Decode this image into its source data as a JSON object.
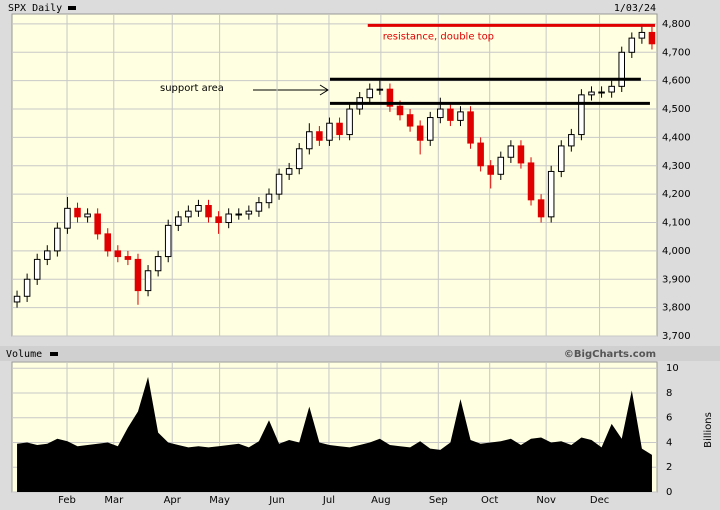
{
  "chart_data": [
    {
      "type": "candlestick",
      "title": "SPX Daily",
      "date": "1/03/24",
      "open": [
        3820,
        3840,
        3900,
        3970,
        4000,
        4080,
        4150,
        4120,
        4130,
        4060,
        4000,
        3980,
        3970,
        3860,
        3930,
        3980,
        4090,
        4120,
        4140,
        4160,
        4120,
        4100,
        4130,
        4130,
        4140,
        4170,
        4200,
        4270,
        4290,
        4360,
        4420,
        4390,
        4450,
        4410,
        4500,
        4540,
        4570,
        4570,
        4510,
        4480,
        4440,
        4390,
        4470,
        4500,
        4460,
        4490,
        4380,
        4300,
        4270,
        4330,
        4370,
        4310,
        4180,
        4120,
        4280,
        4370,
        4410,
        4550,
        4560,
        4560,
        4580,
        4700,
        4750,
        4770
      ],
      "high": [
        3860,
        3920,
        3990,
        4020,
        4100,
        4190,
        4170,
        4150,
        4150,
        4080,
        4020,
        4000,
        3990,
        3950,
        4000,
        4110,
        4140,
        4160,
        4180,
        4180,
        4140,
        4150,
        4150,
        4160,
        4190,
        4220,
        4290,
        4310,
        4380,
        4450,
        4440,
        4470,
        4470,
        4520,
        4560,
        4590,
        4600,
        4590,
        4530,
        4500,
        4460,
        4490,
        4540,
        4520,
        4510,
        4510,
        4400,
        4320,
        4350,
        4390,
        4390,
        4330,
        4200,
        4300,
        4390,
        4430,
        4570,
        4580,
        4580,
        4600,
        4720,
        4770,
        4800,
        4790
      ],
      "low": [
        3800,
        3820,
        3880,
        3950,
        3980,
        4060,
        4100,
        4100,
        4040,
        3980,
        3960,
        3950,
        3810,
        3840,
        3910,
        3960,
        4070,
        4100,
        4120,
        4100,
        4060,
        4080,
        4110,
        4110,
        4120,
        4150,
        4180,
        4250,
        4270,
        4340,
        4370,
        4370,
        4390,
        4390,
        4480,
        4520,
        4550,
        4490,
        4460,
        4420,
        4340,
        4370,
        4450,
        4440,
        4440,
        4360,
        4280,
        4220,
        4250,
        4310,
        4290,
        4160,
        4100,
        4100,
        4260,
        4350,
        4390,
        4530,
        4540,
        4540,
        4560,
        4680,
        4730,
        4710
      ],
      "close": [
        3840,
        3900,
        3970,
        4000,
        4080,
        4150,
        4120,
        4130,
        4060,
        4000,
        3980,
        3970,
        3860,
        3930,
        3980,
        4090,
        4120,
        4140,
        4160,
        4120,
        4100,
        4130,
        4130,
        4140,
        4170,
        4200,
        4270,
        4290,
        4360,
        4420,
        4390,
        4450,
        4410,
        4500,
        4540,
        4570,
        4570,
        4510,
        4480,
        4440,
        4390,
        4470,
        4500,
        4460,
        4490,
        4380,
        4300,
        4270,
        4330,
        4370,
        4310,
        4180,
        4120,
        4280,
        4370,
        4410,
        4550,
        4560,
        4560,
        4580,
        4700,
        4750,
        4770,
        4730
      ],
      "up_color": "#000000",
      "down_color": "#e00000",
      "xlim": [
        -0.5,
        63.5
      ],
      "xticks": [
        {
          "value": 4.96,
          "label": "Feb"
        },
        {
          "value": 9.6,
          "label": "Mar"
        },
        {
          "value": 15.4,
          "label": "Apr"
        },
        {
          "value": 20.1,
          "label": "May"
        },
        {
          "value": 25.8,
          "label": "Jun"
        },
        {
          "value": 30.95,
          "label": "Jul"
        },
        {
          "value": 36.1,
          "label": "Aug"
        },
        {
          "value": 41.8,
          "label": "Sep"
        },
        {
          "value": 46.9,
          "label": "Oct"
        },
        {
          "value": 52.5,
          "label": "Nov"
        },
        {
          "value": 57.8,
          "label": "Dec"
        }
      ],
      "ylim": [
        3700,
        4835
      ],
      "yticks": [
        {
          "value": 3700,
          "label": "3,700"
        },
        {
          "value": 3800,
          "label": "3,800"
        },
        {
          "value": 3900,
          "label": "3,900"
        },
        {
          "value": 4000,
          "label": "4,000"
        },
        {
          "value": 4100,
          "label": "4,100"
        },
        {
          "value": 4200,
          "label": "4,200"
        },
        {
          "value": 4300,
          "label": "4,300"
        },
        {
          "value": 4400,
          "label": "4,400"
        },
        {
          "value": 4500,
          "label": "4,500"
        },
        {
          "value": 4600,
          "label": "4,600"
        },
        {
          "value": 4700,
          "label": "4,700"
        },
        {
          "value": 4800,
          "label": "4,800"
        }
      ],
      "grid": true,
      "levels": [
        {
          "value": 4795,
          "from": 34.8,
          "to": 63.3,
          "color": "#e00000",
          "label": "resistance, double top"
        },
        {
          "value": 4605,
          "from": 31.05,
          "to": 61.9,
          "color": "#000000",
          "label": "support area"
        },
        {
          "value": 4520,
          "from": 31.05,
          "to": 62.8,
          "color": "#000000"
        }
      ]
    },
    {
      "type": "area",
      "title": "Volume",
      "credit": "©BigCharts.com",
      "ylabel": "Billions",
      "color": "#000000",
      "values": [
        3.9,
        4.0,
        3.8,
        3.9,
        4.3,
        4.1,
        3.7,
        3.8,
        3.9,
        4.0,
        3.7,
        5.2,
        6.5,
        9.3,
        4.8,
        4.0,
        3.8,
        3.6,
        3.7,
        3.6,
        3.7,
        3.8,
        3.9,
        3.6,
        4.1,
        5.8,
        3.9,
        4.2,
        4.0,
        6.9,
        4.0,
        3.8,
        3.7,
        3.6,
        3.8,
        4.0,
        4.3,
        3.8,
        3.7,
        3.6,
        4.1,
        3.5,
        3.4,
        4.0,
        7.5,
        4.2,
        3.9,
        4.0,
        4.1,
        4.3,
        3.8,
        4.3,
        4.4,
        4.0,
        4.1,
        3.8,
        4.4,
        4.2,
        3.6,
        5.5,
        4.3,
        8.2,
        3.5,
        3.0
      ],
      "ylim": [
        0,
        10.5
      ],
      "yticks": [
        0,
        2,
        4,
        6,
        8,
        10
      ]
    }
  ]
}
